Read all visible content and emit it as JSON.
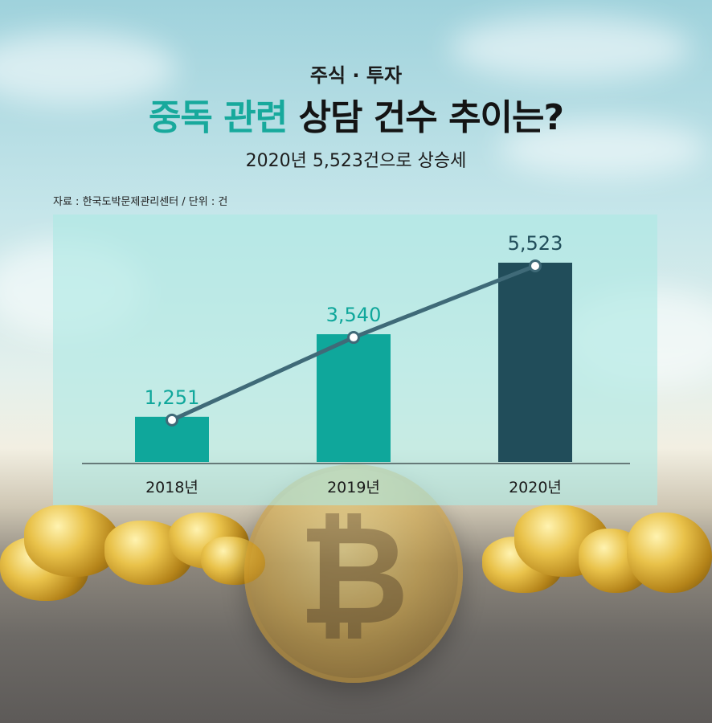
{
  "header": {
    "kicker": "주식 · 투자",
    "headline_highlight": "중독 관련",
    "headline_rest": "상담 건수 추이는?",
    "subtitle": "2020년 5,523건으로 상승세",
    "source": "자료 : 한국도박문제관리센터 / 단위 : 건"
  },
  "colors": {
    "accent": "#17a99c",
    "bar_2018": "#0fa79b",
    "bar_2019": "#0fa79b",
    "bar_2020": "#214d5a",
    "line": "#3f6a78",
    "panel": "#ace8e4"
  },
  "chart_data": {
    "type": "bar",
    "categories": [
      "2018년",
      "2019년",
      "2020년"
    ],
    "values": [
      1251,
      3540,
      5523
    ],
    "value_labels": [
      "1,251",
      "3,540",
      "5,523"
    ],
    "overlay_line": true,
    "ylim": [
      0,
      6000
    ],
    "grid": false,
    "legend": "none"
  }
}
